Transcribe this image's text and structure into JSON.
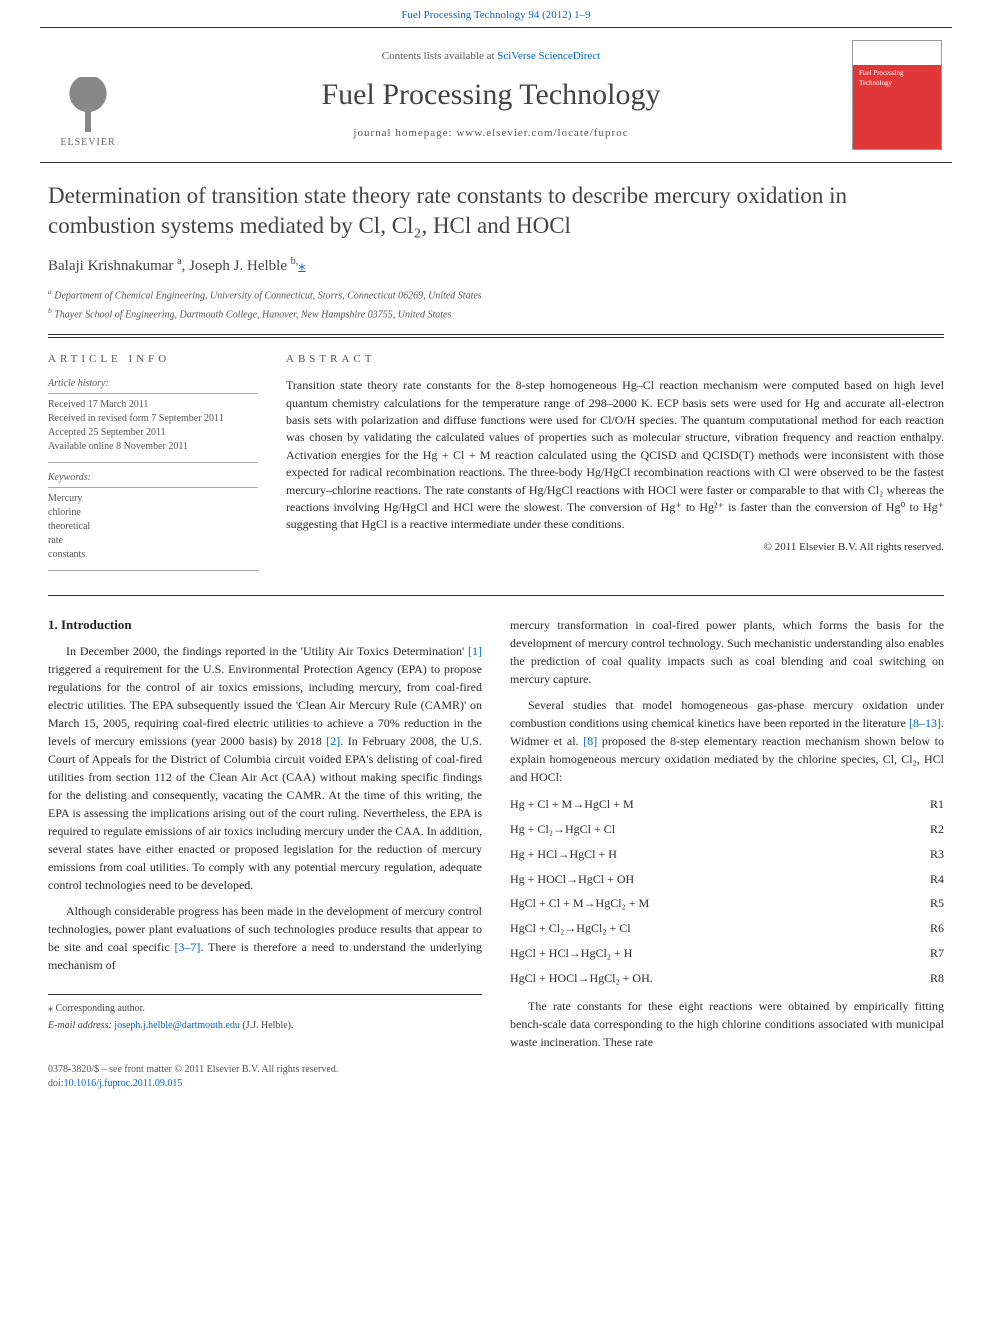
{
  "top_reference": "Fuel Processing Technology 94 (2012) 1–9",
  "masthead": {
    "contents_prefix": "Contents lists available at ",
    "contents_link": "SciVerse ScienceDirect",
    "journal_name": "Fuel Processing Technology",
    "homepage_prefix": "journal homepage: ",
    "homepage_url": "www.elsevier.com/locate/fuproc",
    "publisher_label": "ELSEVIER"
  },
  "title": "Determination of transition state theory rate constants to describe mercury oxidation in combustion systems mediated by Cl, Cl₂, HCl and HOCl",
  "authors": {
    "a1_name": "Balaji Krishnakumar",
    "a1_sup": "a",
    "a2_name": "Joseph J. Helble",
    "a2_sup": "b,",
    "corr_mark": "⁎"
  },
  "affiliations": {
    "a": "Department of Chemical Engineering, University of Connecticut, Storrs, Connecticut 06269, United States",
    "b": "Thayer School of Engineering, Dartmouth College, Hanover, New Hampshire 03755, United States"
  },
  "article_info": {
    "heading": "ARTICLE INFO",
    "history_heading": "Article history:",
    "received": "Received 17 March 2011",
    "revised": "Received in revised form 7 September 2011",
    "accepted": "Accepted 25 September 2011",
    "online": "Available online 8 November 2011",
    "keywords_heading": "Keywords:",
    "kw1": "Mercury",
    "kw2": "chlorine",
    "kw3": "theoretical",
    "kw4": "rate",
    "kw5": "constants"
  },
  "abstract": {
    "heading": "ABSTRACT",
    "text": "Transition state theory rate constants for the 8-step homogeneous Hg–Cl reaction mechanism were computed based on high level quantum chemistry calculations for the temperature range of 298–2000 K. ECP basis sets were used for Hg and accurate all-electron basis sets with polarization and diffuse functions were used for Cl/O/H species. The quantum computational method for each reaction was chosen by validating the calculated values of properties such as molecular structure, vibration frequency and reaction enthalpy. Activation energies for the Hg + Cl + M reaction calculated using the QCISD and QCISD(T) methods were inconsistent with those expected for radical recombination reactions. The three-body Hg/HgCl recombination reactions with Cl were observed to be the fastest mercury–chlorine reactions. The rate constants of Hg/HgCl reactions with HOCl were faster or comparable to that with Cl₂ whereas the reactions involving Hg/HgCl and HCl were the slowest. The conversion of Hg⁺ to Hg²⁺ is faster than the conversion of Hg⁰ to Hg⁺ suggesting that HgCl is a reactive intermediate under these conditions.",
    "copyright": "© 2011 Elsevier B.V. All rights reserved."
  },
  "intro": {
    "heading": "1. Introduction",
    "p1_a": "In December 2000, the findings reported in the 'Utility Air Toxics Determination' ",
    "p1_ref1": "[1]",
    "p1_b": " triggered a requirement for the U.S. Environmental Protection Agency (EPA) to propose regulations for the control of air toxics emissions, including mercury, from coal-fired electric utilities. The EPA subsequently issued the 'Clean Air Mercury Rule (CAMR)' on March 15, 2005, requiring coal-fired electric utilities to achieve a 70% reduction in the levels of mercury emissions (year 2000 basis) by 2018 ",
    "p1_ref2": "[2]",
    "p1_c": ". In February 2008, the U.S. Court of Appeals for the District of Columbia circuit voided EPA's delisting of coal-fired utilities from section 112 of the Clean Air Act (CAA) without making specific findings for the delisting and consequently, vacating the CAMR. At the time of this writing, the EPA is assessing the implications arising out of the court ruling. Nevertheless, the EPA is required to regulate emissions of air toxics including mercury under the CAA. In addition, several states have either enacted or proposed legislation for the reduction of mercury emissions from coal utilities. To comply with any potential mercury regulation, adequate control technologies need to be developed.",
    "p2_a": "Although considerable progress has been made in the development of mercury control technologies, power plant evaluations of such technologies produce results that appear to be site and coal specific ",
    "p2_ref": "[3–7]",
    "p2_b": ". There is therefore a need to understand the underlying mechanism of",
    "p2_cont": "mercury transformation in coal-fired power plants, which forms the basis for the development of mercury control technology. Such mechanistic understanding also enables the prediction of coal quality impacts such as coal blending and coal switching on mercury capture.",
    "p3_a": "Several studies that model homogeneous gas-phase mercury oxidation under combustion conditions using chemical kinetics have been reported in the literature ",
    "p3_ref1": "[8–13]",
    "p3_b": ". Widmer et al. ",
    "p3_ref2": "[8]",
    "p3_c": " proposed the 8-step elementary reaction mechanism shown below to explain homogeneous mercury oxidation mediated by the chlorine species, Cl, Cl₂, HCl and HOCl:",
    "p4": "The rate constants for these eight reactions were obtained by empirically fitting bench-scale data corresponding to the high chlorine conditions associated with municipal waste incineration. These rate"
  },
  "reactions": {
    "r1": {
      "eq": "Hg + Cl + M→HgCl + M",
      "label": "R1"
    },
    "r2": {
      "eq": "Hg + Cl₂→HgCl + Cl",
      "label": "R2"
    },
    "r3": {
      "eq": "Hg + HCl→HgCl + H",
      "label": "R3"
    },
    "r4": {
      "eq": "Hg + HOCl→HgCl + OH",
      "label": "R4"
    },
    "r5": {
      "eq": "HgCl + Cl + M→HgCl₂ + M",
      "label": "R5"
    },
    "r6": {
      "eq": "HgCl + Cl₂→HgCl₂ + Cl",
      "label": "R6"
    },
    "r7": {
      "eq": "HgCl + HCl→HgCl₂ + H",
      "label": "R7"
    },
    "r8": {
      "eq": "HgCl + HOCl→HgCl₂ + OH.",
      "label": "R8"
    }
  },
  "footnotes": {
    "corr": "⁎ Corresponding author.",
    "email_label": "E-mail address: ",
    "email": "joseph.j.helble@dartmouth.edu",
    "email_who": " (J.J. Helble)."
  },
  "footer": {
    "line1": "0378-3820/$ – see front matter © 2011 Elsevier B.V. All rights reserved.",
    "doi_prefix": "doi:",
    "doi": "10.1016/j.fuproc.2011.09.015"
  },
  "colors": {
    "link": "#0066cc",
    "rule": "#333333",
    "text": "#2a2a2a",
    "muted": "#555555",
    "cover_red": "#e03838"
  },
  "typography": {
    "body_pt": 12,
    "title_pt": 23,
    "journal_pt": 30,
    "info_pt": 10,
    "abstract_pt": 12
  }
}
